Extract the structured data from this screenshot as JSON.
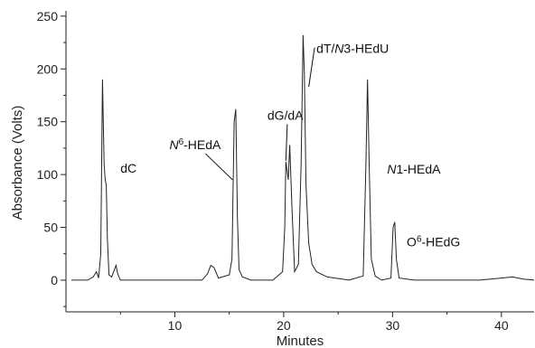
{
  "chart_data": {
    "type": "line",
    "title": "",
    "xlabel": "Minutes",
    "ylabel": "Absorbance (Volts)",
    "xlim": [
      0,
      43
    ],
    "ylim": [
      -30,
      255
    ],
    "xticks": [
      10,
      20,
      30,
      40
    ],
    "yticks": [
      0,
      50,
      100,
      150,
      200,
      250
    ],
    "grid": false,
    "legend": "none",
    "series": [
      {
        "color": "#222222",
        "x": [
          0.5,
          2.0,
          2.5,
          2.8,
          3.0,
          3.2,
          3.35,
          3.5,
          3.6,
          3.7,
          3.8,
          3.95,
          4.2,
          4.45,
          4.6,
          4.75,
          5.0,
          5.5,
          7.0,
          10.0,
          12.5,
          13.0,
          13.3,
          13.6,
          14.0,
          15.0,
          15.25,
          15.45,
          15.6,
          15.75,
          15.9,
          16.2,
          17.0,
          19.0,
          19.9,
          20.1,
          20.2,
          20.3,
          20.42,
          20.55,
          20.75,
          21.0,
          21.35,
          21.6,
          21.78,
          21.9,
          22.05,
          22.3,
          22.6,
          23.0,
          24.0,
          26.0,
          27.3,
          27.55,
          27.7,
          27.85,
          28.05,
          28.4,
          29.0,
          29.85,
          30.05,
          30.2,
          30.35,
          30.6,
          32.0,
          35.0,
          38.0,
          40.0,
          41.0,
          42.0,
          43.0
        ],
        "y": [
          0,
          0,
          3,
          8,
          2,
          25,
          190,
          110,
          95,
          90,
          40,
          5,
          3,
          10,
          14,
          6,
          0,
          0,
          0,
          0,
          0,
          6,
          14,
          12,
          2,
          5,
          20,
          150,
          162,
          60,
          10,
          3,
          0,
          0,
          8,
          50,
          112,
          105,
          95,
          128,
          70,
          8,
          15,
          110,
          232,
          195,
          90,
          35,
          15,
          8,
          3,
          0,
          4,
          110,
          190,
          110,
          20,
          4,
          0,
          2,
          50,
          55,
          20,
          2,
          0,
          0,
          0,
          2,
          3,
          1,
          0
        ]
      }
    ],
    "annotations": [
      {
        "text": "dC",
        "x": 5.0,
        "y": 102
      },
      {
        "text_italic": "N",
        "text_sup": "6",
        "text": "-HEdA",
        "x": 9.5,
        "y": 124,
        "arrow_to": [
          15.3,
          95
        ]
      },
      {
        "text": "dG/dA",
        "x": 18.5,
        "y": 152,
        "arrow_to": [
          20.2,
          113
        ]
      },
      {
        "text_pre": "dT/",
        "text_italic": "N",
        "text": "3-HEdU",
        "x": 23.0,
        "y": 215,
        "arrow_to": [
          22.3,
          183
        ]
      },
      {
        "text_italic": "N",
        "text": "1-HEdA",
        "x": 29.5,
        "y": 101
      },
      {
        "text": "O",
        "text_sup": "6",
        "text_post": "-HEdG",
        "x": 31.3,
        "y": 32
      }
    ]
  }
}
